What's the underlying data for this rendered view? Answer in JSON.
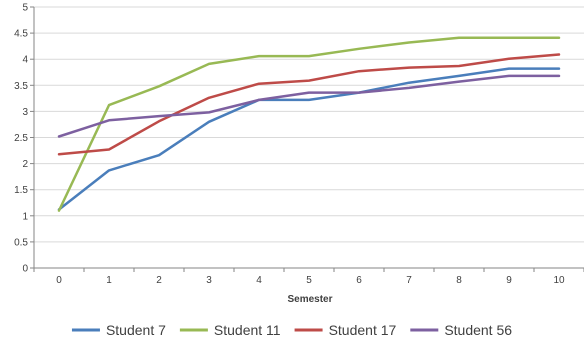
{
  "chart_data": {
    "type": "line",
    "title": "",
    "xlabel": "Semester",
    "ylabel": "",
    "x": [
      0,
      1,
      2,
      3,
      4,
      5,
      6,
      7,
      8,
      9,
      10
    ],
    "ylim": [
      0,
      5
    ],
    "y_ticks": [
      "0",
      "0.5",
      "1",
      "1.5",
      "2",
      "2.5",
      "3",
      "3.5",
      "4",
      "4.5",
      "5"
    ],
    "x_ticks": [
      "0",
      "1",
      "2",
      "3",
      "4",
      "5",
      "6",
      "7",
      "8",
      "9",
      "10"
    ],
    "grid": "horizontal",
    "legend_position": "bottom",
    "series": [
      {
        "name": "Student 7",
        "color": "#4a7ebb",
        "values": [
          1.12,
          1.87,
          2.16,
          2.8,
          3.22,
          3.22,
          3.36,
          3.55,
          3.68,
          3.82,
          3.82
        ]
      },
      {
        "name": "Student 11",
        "color": "#98b954",
        "values": [
          1.1,
          3.12,
          3.48,
          3.91,
          4.06,
          4.06,
          4.2,
          4.32,
          4.41,
          4.41,
          4.41
        ]
      },
      {
        "name": "Student 17",
        "color": "#be4b48",
        "values": [
          2.18,
          2.27,
          2.81,
          3.26,
          3.53,
          3.59,
          3.77,
          3.84,
          3.87,
          4.01,
          4.09
        ]
      },
      {
        "name": "Student 56",
        "color": "#7d60a0",
        "values": [
          2.52,
          2.83,
          2.91,
          2.98,
          3.22,
          3.36,
          3.36,
          3.45,
          3.57,
          3.68,
          3.68
        ]
      }
    ]
  }
}
